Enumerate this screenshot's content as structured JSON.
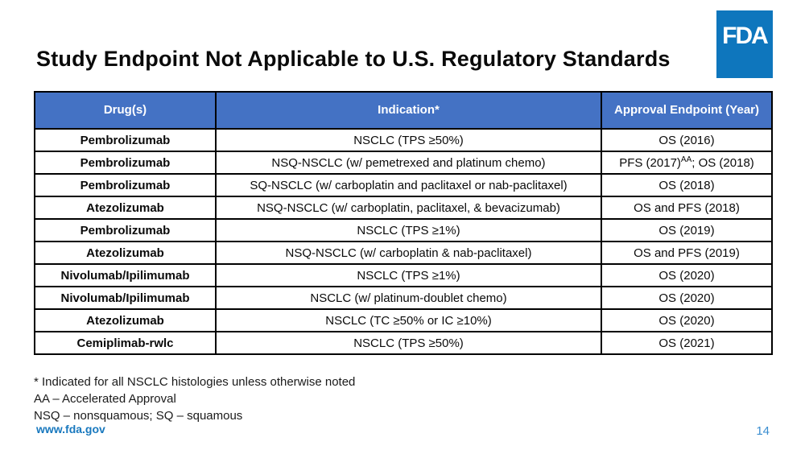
{
  "logo": {
    "text": "FDA",
    "color": "#0e76bd"
  },
  "title": "Study Endpoint Not Applicable to U.S. Regulatory Standards",
  "table": {
    "header_bg": "#4472c4",
    "headers": [
      "Drug(s)",
      "Indication*",
      "Approval Endpoint (Year)"
    ],
    "rows": [
      {
        "drug": "Pembrolizumab",
        "indication": "NSCLC (TPS ≥50%)",
        "endpoint": "OS (2016)"
      },
      {
        "drug": "Pembrolizumab",
        "indication": "NSQ-NSCLC (w/ pemetrexed and platinum chemo)",
        "endpoint_pre": "PFS (2017)",
        "endpoint_sup": "AA",
        "endpoint_post": "; OS (2018)"
      },
      {
        "drug": "Pembrolizumab",
        "indication": "SQ-NSCLC (w/ carboplatin and paclitaxel or nab-paclitaxel)",
        "endpoint": "OS (2018)"
      },
      {
        "drug": "Atezolizumab",
        "indication": "NSQ-NSCLC (w/ carboplatin, paclitaxel, & bevacizumab)",
        "endpoint": "OS and PFS (2018)"
      },
      {
        "drug": "Pembrolizumab",
        "indication": "NSCLC (TPS ≥1%)",
        "endpoint": "OS (2019)"
      },
      {
        "drug": "Atezolizumab",
        "indication": "NSQ-NSCLC (w/ carboplatin & nab-paclitaxel)",
        "endpoint": "OS and PFS (2019)"
      },
      {
        "drug": "Nivolumab/Ipilimumab",
        "indication": "NSCLC (TPS ≥1%)",
        "endpoint": "OS (2020)"
      },
      {
        "drug": "Nivolumab/Ipilimumab",
        "indication": "NSCLC (w/ platinum-doublet chemo)",
        "endpoint": "OS (2020)"
      },
      {
        "drug": "Atezolizumab",
        "indication": "NSCLC (TC ≥50% or IC ≥10%)",
        "endpoint": "OS (2020)"
      },
      {
        "drug": "Cemiplimab-rwlc",
        "indication": "NSCLC (TPS ≥50%)",
        "endpoint": "OS (2021)"
      }
    ]
  },
  "footnotes": [
    "* Indicated for all NSCLC histologies unless otherwise noted",
    "AA – Accelerated Approval",
    "NSQ – nonsquamous; SQ – squamous"
  ],
  "footer": {
    "url": "www.fda.gov",
    "page": "14"
  }
}
